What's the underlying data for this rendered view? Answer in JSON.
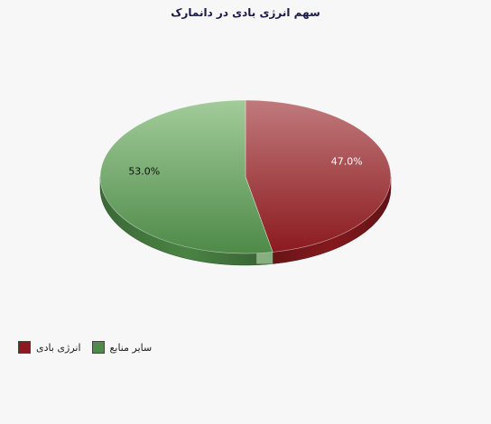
{
  "chart_data": {
    "type": "pie",
    "title": "سهم انرژی بادی در دانمارک",
    "slices": [
      {
        "name": "انرژی بادی",
        "value": 47.0,
        "label": "47.0%",
        "color": "#8b1a1f",
        "color_light": "#c07a7c"
      },
      {
        "name": "سایر منابع",
        "value": 53.0,
        "label": "53.0%",
        "color": "#4e8a48",
        "color_light": "#a2cc9a"
      }
    ],
    "legend_position": "bottom-left",
    "style": "3d"
  }
}
